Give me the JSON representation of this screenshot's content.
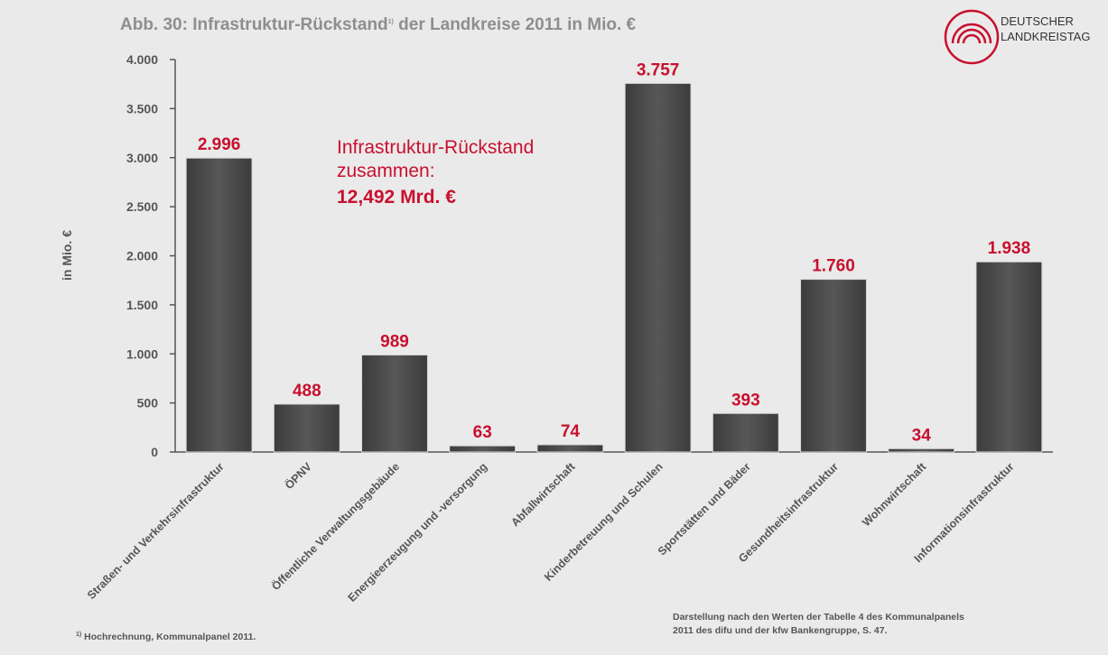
{
  "chart_data": {
    "type": "bar",
    "title_main": "Abb. 30: Infrastruktur-Rückstand",
    "title_sup": "1)",
    "title_rest": " der Landkreise 2011 in Mio. €",
    "ylabel": "in Mio. €",
    "ylim": [
      0,
      4000
    ],
    "ytick_values": [
      0,
      500,
      1000,
      1500,
      2000,
      2500,
      3000,
      3500,
      4000
    ],
    "ytick_labels": [
      "0",
      "500",
      "1.000",
      "1.500",
      "2.000",
      "2.500",
      "3.000",
      "3.500",
      "4.000"
    ],
    "categories": [
      "Straßen- und Verkehrsinfrastruktur",
      "ÖPNV",
      "Öffentliche Verwaltungsgebäude",
      "Energieerzeugung und -versorgung",
      "Abfallwirtschaft",
      "Kinderbetreuung und Schulen",
      "Sportstätten und Bäder",
      "Gesundheitsinfrastruktur",
      "Wohnwirtschaft",
      "Informationsinfrastruktur"
    ],
    "values": [
      2996,
      488,
      989,
      63,
      74,
      3757,
      393,
      1760,
      34,
      1938
    ],
    "value_labels": [
      "2.996",
      "488",
      "989",
      "63",
      "74",
      "3.757",
      "393",
      "1.760",
      "34",
      "1.938"
    ],
    "annotation": {
      "line1": "Infrastruktur-Rückstand",
      "line2": "zusammen:",
      "line3": "12,492 Mrd. €"
    },
    "footnote_marker": "1)",
    "footnote": " Hochrechnung, Kommunalpanel 2011.",
    "source_line1": "Darstellung nach den Werten der Tabelle 4 des Kommunalpanels",
    "source_line2": "2011 des difu und der kfw Bankengruppe, S. 47."
  },
  "logo": {
    "line1": "DEUTSCHER",
    "line2": "LANDKREISTAG"
  },
  "colors": {
    "bar": "#4a4a4a",
    "accent": "#c8102e",
    "axis": "#555555",
    "background": "#eaeaea"
  }
}
